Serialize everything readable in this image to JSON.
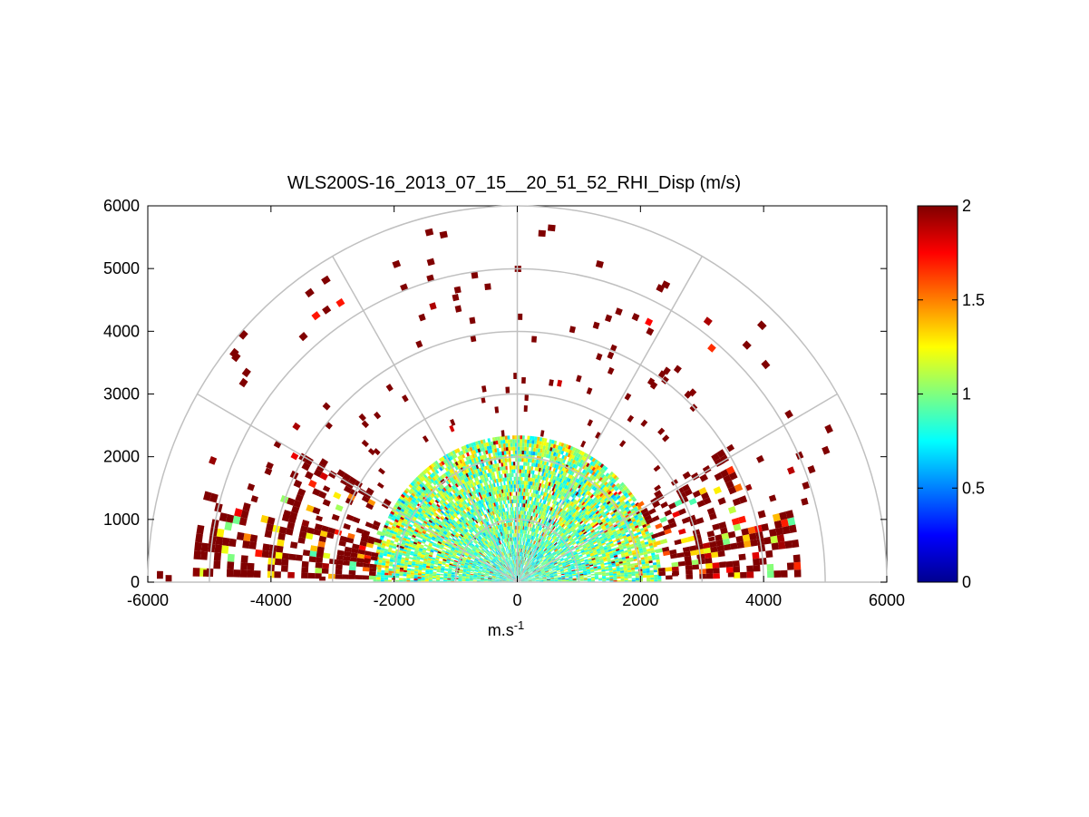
{
  "chart_data": {
    "type": "heatmap",
    "subtype": "polar RHI scan",
    "title": "WLS200S-16_2013_07_15__20_51_52_RHI_Disp (m/s)",
    "xlabel": "m.s",
    "xlabel_sup": "-1",
    "ylabel": "",
    "xlim": [
      -6000,
      6000
    ],
    "ylim": [
      0,
      6000
    ],
    "xticks": [
      "-6000",
      "-4000",
      "-2000",
      "0",
      "2000",
      "4000",
      "6000"
    ],
    "xtick_values": [
      -6000,
      -4000,
      -2000,
      0,
      2000,
      4000,
      6000
    ],
    "yticks": [
      "0",
      "1000",
      "2000",
      "3000",
      "4000",
      "5000",
      "6000"
    ],
    "ytick_values": [
      0,
      1000,
      2000,
      3000,
      4000,
      5000,
      6000
    ],
    "polar_grid": {
      "range_rings_m": [
        1000,
        2000,
        3000,
        4000,
        5000,
        6000
      ],
      "spokes_deg": [
        0,
        30,
        60,
        90,
        120,
        150,
        180
      ],
      "scan_elevation_deg": [
        0,
        180
      ],
      "dense_core_max_range_m": 2300
    },
    "colorbar": {
      "min": 0,
      "max": 2,
      "ticks": [
        "0",
        "0.5",
        "1",
        "1.5",
        "2"
      ],
      "tick_values": [
        0,
        0.5,
        1,
        1.5,
        2
      ],
      "colormap": "jet",
      "colors": [
        "#00008f",
        "#0000ff",
        "#007fff",
        "#00ffff",
        "#7fff7f",
        "#ffff00",
        "#ff7f00",
        "#ff0000",
        "#800000"
      ]
    },
    "grid": true
  }
}
